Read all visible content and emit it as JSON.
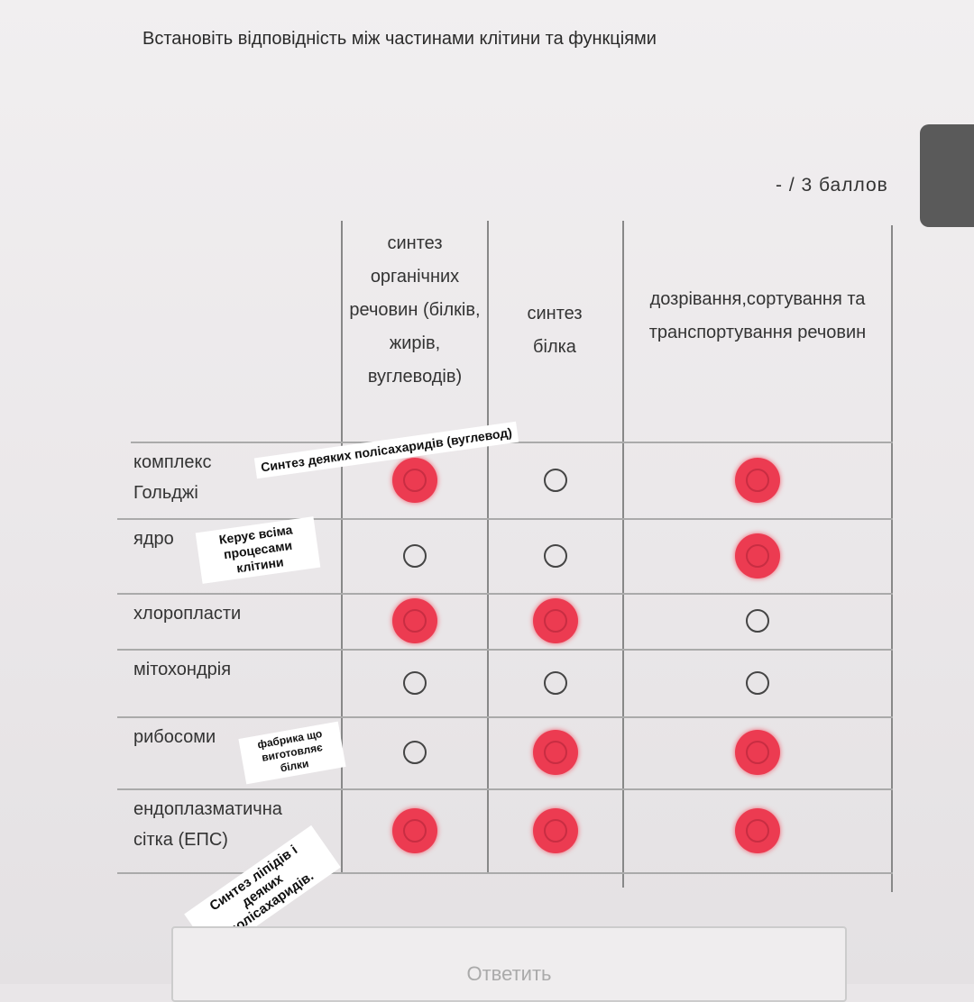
{
  "question": {
    "title": "Встановіть відповідність між частинами клітини та функціями",
    "points": "- / 3 баллов"
  },
  "columns": [
    "синтез органічних речовин (білків, жирів, вуглеводів)",
    "синтез білка",
    "дозрівання,сортування та транспортування речовин"
  ],
  "rows": [
    {
      "label": "комплекс Гольджі",
      "selected": [
        true,
        false,
        true
      ]
    },
    {
      "label": "ядро",
      "selected": [
        false,
        false,
        true
      ]
    },
    {
      "label": "хлоропласти",
      "selected": [
        true,
        true,
        false
      ]
    },
    {
      "label": "мітохондрія",
      "selected": [
        false,
        false,
        false
      ]
    },
    {
      "label": "рибосоми",
      "selected": [
        false,
        true,
        true
      ]
    },
    {
      "label": "ендоплазматична сітка (ЕПС)",
      "selected": [
        true,
        true,
        true
      ]
    }
  ],
  "annotations": [
    "Синтез деяких полісахаридів (вуглевод)",
    "Керує всіма процесами клітини",
    "фабрика що виготовляє білки",
    "Синтез ліпідів і деяких полісахаридів."
  ],
  "submit_label": "Ответить",
  "colors": {
    "selected": "#ec3b51",
    "tab": "#5a5a5a"
  }
}
